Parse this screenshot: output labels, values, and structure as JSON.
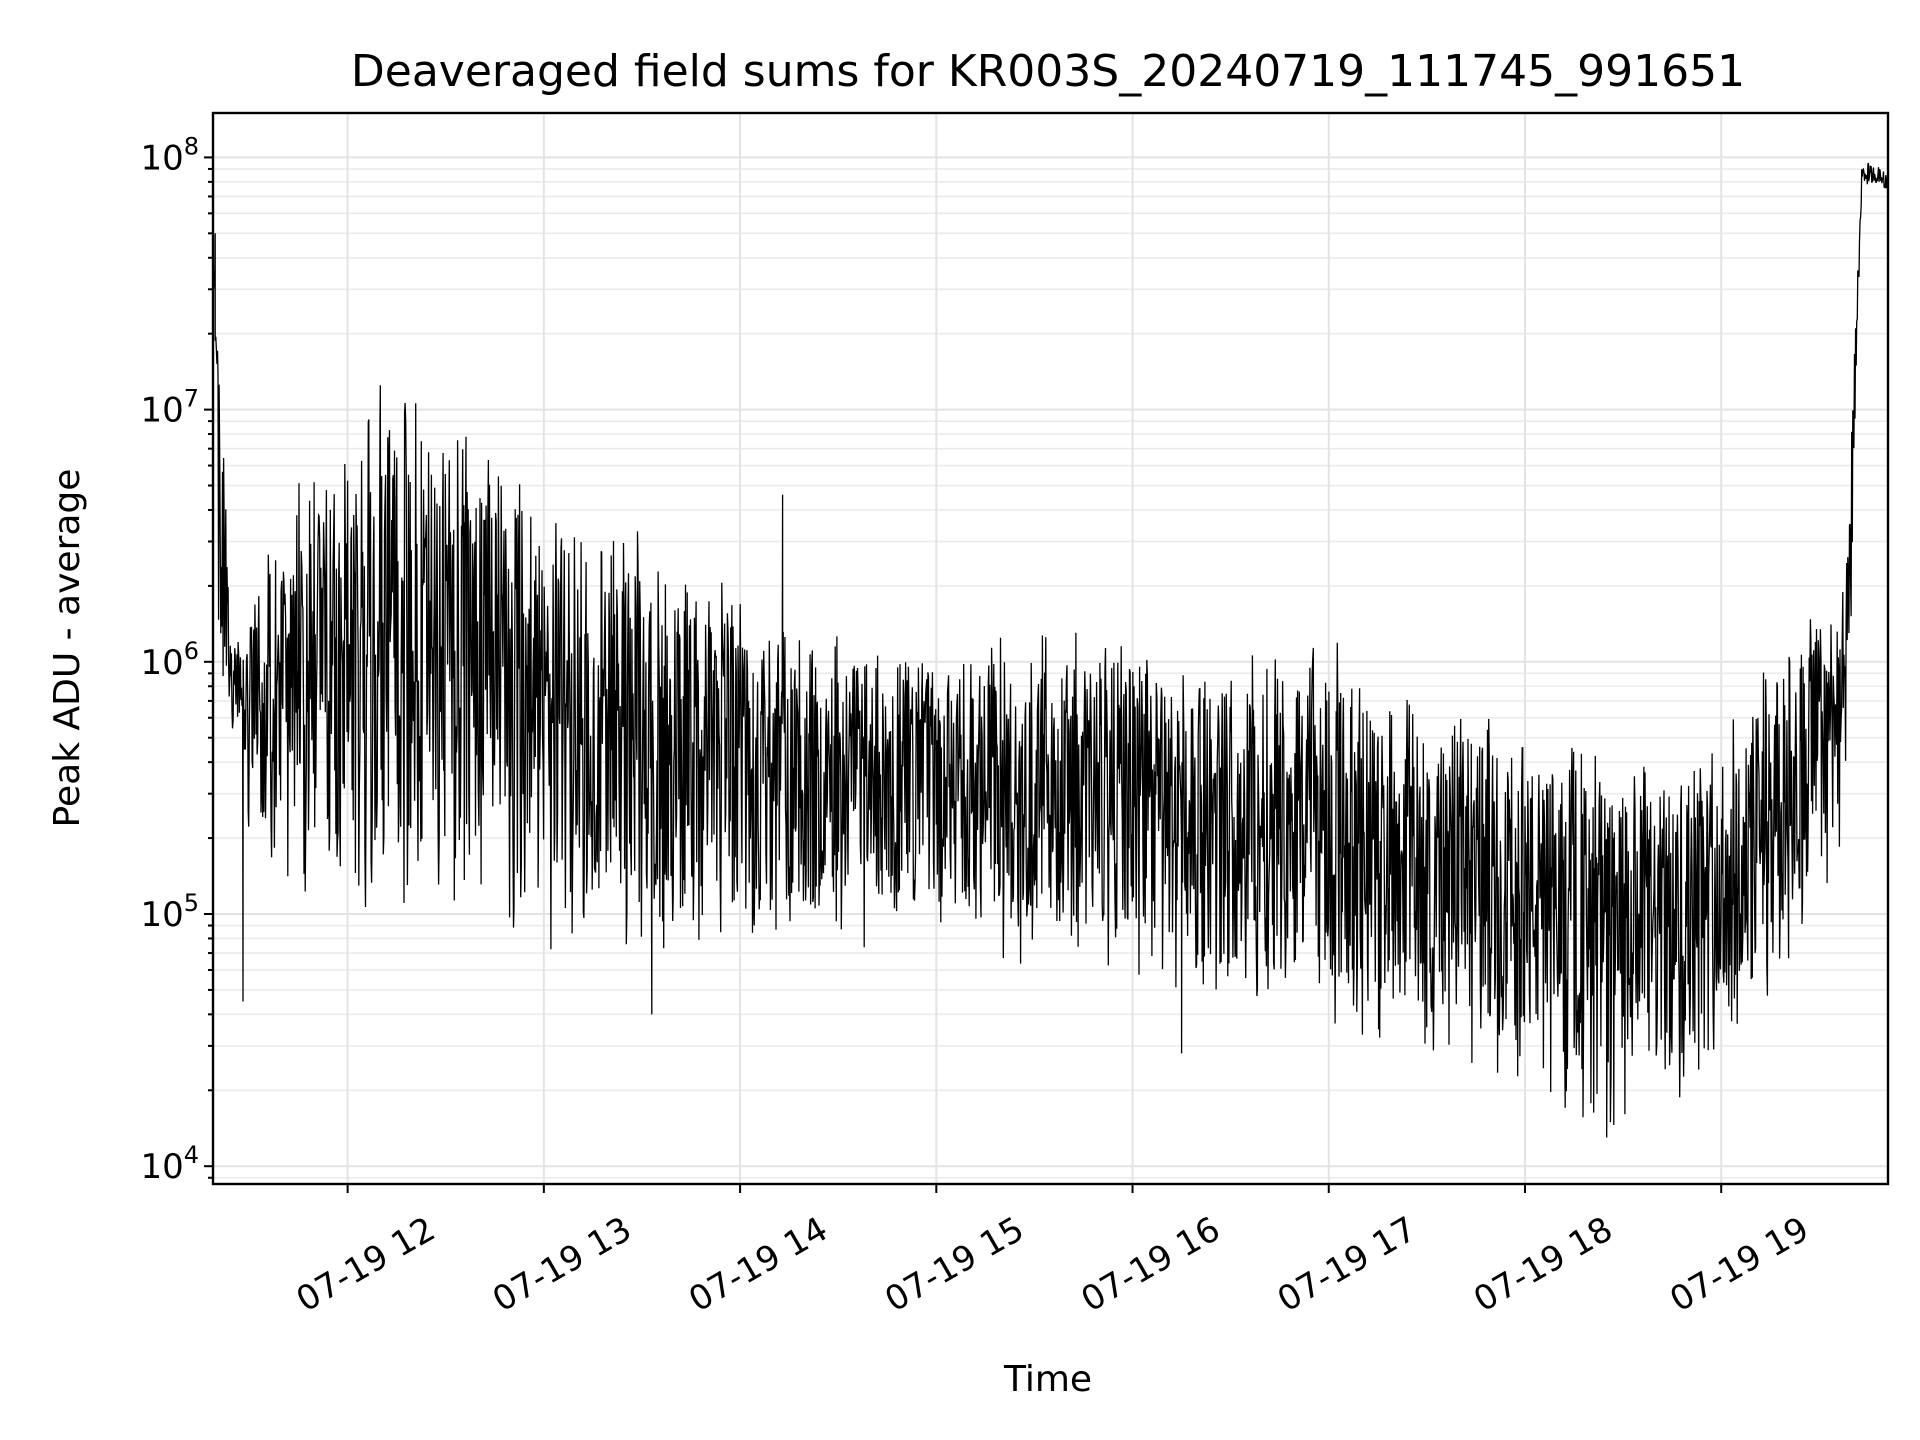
{
  "chart_data": {
    "type": "line",
    "title": "Deaveraged field sums for KR003S_20240719_111745_991651",
    "xlabel": "Time",
    "ylabel": "Peak ADU - average",
    "yscale": "log",
    "ylim": [
      8500,
      150000000
    ],
    "xlim": [
      "2024-07-19T11:18:50",
      "2024-07-19T19:51:00"
    ],
    "grid": true,
    "legend": "none",
    "colors": {
      "line": "#000000",
      "grid": "#e3e3e3"
    },
    "x_ticks": [
      {
        "label": "07-19 12",
        "t": "2024-07-19T12:00:00"
      },
      {
        "label": "07-19 13",
        "t": "2024-07-19T13:00:00"
      },
      {
        "label": "07-19 14",
        "t": "2024-07-19T14:00:00"
      },
      {
        "label": "07-19 15",
        "t": "2024-07-19T15:00:00"
      },
      {
        "label": "07-19 16",
        "t": "2024-07-19T16:00:00"
      },
      {
        "label": "07-19 17",
        "t": "2024-07-19T17:00:00"
      },
      {
        "label": "07-19 18",
        "t": "2024-07-19T18:00:00"
      },
      {
        "label": "07-19 19",
        "t": "2024-07-19T19:00:00"
      }
    ],
    "y_ticks": [
      {
        "base": "10",
        "exp": "4",
        "value": 10000
      },
      {
        "base": "10",
        "exp": "5",
        "value": 100000
      },
      {
        "base": "10",
        "exp": "6",
        "value": 1000000
      },
      {
        "base": "10",
        "exp": "7",
        "value": 10000000
      },
      {
        "base": "10",
        "exp": "8",
        "value": 100000000
      }
    ],
    "series": [
      {
        "envelope": {
          "x": [
            "2024-07-19T11:18:50",
            "2024-07-19T11:25:00",
            "2024-07-19T11:30:00",
            "2024-07-19T11:40:00",
            "2024-07-19T11:50:00",
            "2024-07-19T12:00:00",
            "2024-07-19T12:15:00",
            "2024-07-19T12:30:00",
            "2024-07-19T12:45:00",
            "2024-07-19T13:00:00",
            "2024-07-19T13:15:00",
            "2024-07-19T13:30:00",
            "2024-07-19T13:45:00",
            "2024-07-19T14:00:00",
            "2024-07-19T14:15:00",
            "2024-07-19T14:30:00",
            "2024-07-19T14:45:00",
            "2024-07-19T15:00:00",
            "2024-07-19T15:15:00",
            "2024-07-19T15:30:00",
            "2024-07-19T15:45:00",
            "2024-07-19T16:00:00",
            "2024-07-19T16:15:00",
            "2024-07-19T16:30:00",
            "2024-07-19T16:45:00",
            "2024-07-19T17:00:00",
            "2024-07-19T17:15:00",
            "2024-07-19T17:30:00",
            "2024-07-19T17:45:00",
            "2024-07-19T18:00:00",
            "2024-07-19T18:15:00",
            "2024-07-19T18:30:00",
            "2024-07-19T18:45:00",
            "2024-07-19T19:00:00",
            "2024-07-19T19:15:00",
            "2024-07-19T19:30:00",
            "2024-07-19T19:38:00",
            "2024-07-19T19:43:00",
            "2024-07-19T19:51:00"
          ],
          "high": [
            45000000,
            1200000,
            1500000,
            3000000,
            5000000,
            7000000,
            9000000,
            7000000,
            5000000,
            3000000,
            3000000,
            2500000,
            2000000,
            1500000,
            1100000,
            1000000,
            1000000,
            1000000,
            1000000,
            1000000,
            1000000,
            1000000,
            800000,
            800000,
            1000000,
            1000000,
            600000,
            500000,
            500000,
            400000,
            350000,
            300000,
            300000,
            400000,
            800000,
            1500000,
            2000000,
            95000000,
            90000000
          ],
          "low": [
            1000000,
            500000,
            300000,
            200000,
            150000,
            150000,
            150000,
            150000,
            120000,
            100000,
            100000,
            100000,
            90000,
            100000,
            100000,
            100000,
            100000,
            100000,
            100000,
            80000,
            80000,
            80000,
            70000,
            60000,
            60000,
            50000,
            45000,
            40000,
            35000,
            30000,
            22000,
            20000,
            22000,
            30000,
            60000,
            150000,
            300000,
            80000000,
            75000000
          ]
        }
      }
    ],
    "notable_points": [
      {
        "t": "2024-07-19T11:19:30",
        "value": 50000000
      },
      {
        "t": "2024-07-19T11:28:00",
        "value": 45000
      },
      {
        "t": "2024-07-19T12:10:00",
        "value": 12500000
      },
      {
        "t": "2024-07-19T13:33:00",
        "value": 40000
      },
      {
        "t": "2024-07-19T14:13:00",
        "value": 4600000
      },
      {
        "t": "2024-07-19T16:15:00",
        "value": 28000
      },
      {
        "t": "2024-07-19T18:25:00",
        "value": 13000
      },
      {
        "t": "2024-07-19T19:45:00",
        "value": 95000000
      }
    ]
  }
}
